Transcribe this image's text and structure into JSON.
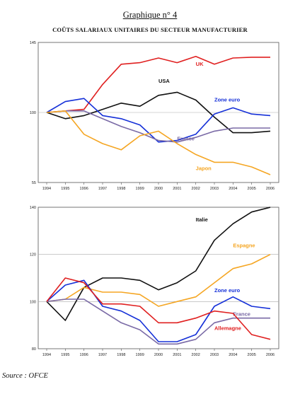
{
  "title": "Graphique n° 4",
  "subtitle": "COÛTS SALARIAUX UNITAIRES DU SECTEUR MANUFACTURIER",
  "source": "Source : OFCE",
  "chart_data": [
    {
      "type": "line",
      "x": [
        "1994",
        "1995",
        "1996",
        "1997",
        "1998",
        "1999",
        "2000",
        "2001",
        "2002",
        "2003",
        "2004",
        "2005",
        "2006"
      ],
      "ylim": [
        55,
        145
      ],
      "yticks": [
        "55",
        "100",
        "145"
      ],
      "series": [
        {
          "name": "UK",
          "color": "#e02020",
          "label_x": "2002",
          "label_y": 130,
          "values": [
            100,
            101,
            102,
            118,
            131,
            132,
            135,
            132,
            136,
            131,
            135,
            135.5,
            135.5
          ]
        },
        {
          "name": "USA",
          "color": "#111111",
          "label_x": "2000",
          "label_y": 119,
          "values": [
            100,
            96,
            98,
            102,
            106,
            104,
            111,
            113,
            108,
            97,
            87,
            87,
            88
          ]
        },
        {
          "name": "Zone euro",
          "color": "#1530d8",
          "label_x": "2003",
          "label_y": 107,
          "values": [
            100,
            107,
            109,
            98,
            96,
            92,
            81,
            82,
            86,
            99,
            103,
            99,
            98
          ]
        },
        {
          "name": "France",
          "color": "#7a6aa6",
          "label_x": "2001",
          "label_y": 82,
          "values": [
            100,
            101,
            101,
            96,
            91,
            87,
            82,
            81,
            84,
            88,
            90,
            90,
            90
          ]
        },
        {
          "name": "Japon",
          "color": "#f5a623",
          "label_x": "2002",
          "label_y": 63,
          "values": [
            100,
            101,
            86,
            80,
            76,
            85,
            88,
            80,
            73,
            68,
            68,
            65,
            60
          ]
        }
      ]
    },
    {
      "type": "line",
      "x": [
        "1994",
        "1995",
        "1996",
        "1997",
        "1998",
        "1999",
        "2000",
        "2001",
        "2002",
        "2003",
        "2004",
        "2005",
        "2006"
      ],
      "ylim": [
        80,
        140
      ],
      "yticks": [
        "80",
        "100",
        "120",
        "140"
      ],
      "series": [
        {
          "name": "Italie",
          "color": "#111111",
          "label_x": "2002",
          "label_y": 134,
          "values": [
            100,
            92,
            106,
            110,
            110,
            109,
            105,
            108,
            113,
            126,
            133,
            138,
            140
          ]
        },
        {
          "name": "Espagne",
          "color": "#f5a623",
          "label_x": "2004",
          "label_y": 123,
          "values": [
            100,
            101,
            106,
            104,
            104,
            103,
            98,
            100,
            102,
            108,
            114,
            116,
            120
          ]
        },
        {
          "name": "Zone euro",
          "color": "#1530d8",
          "label_x": "2003",
          "label_y": 104,
          "values": [
            100,
            107,
            109,
            98,
            96,
            92,
            83,
            83,
            86,
            98,
            102,
            98,
            97
          ]
        },
        {
          "name": "France",
          "color": "#7a6aa6",
          "label_x": "2004",
          "label_y": 94,
          "values": [
            100,
            101,
            101,
            96,
            91,
            88,
            82,
            82,
            84,
            91,
            93,
            93,
            93
          ]
        },
        {
          "name": "Allemagne",
          "color": "#e02020",
          "label_x": "2003",
          "label_y": 88,
          "values": [
            100,
            110,
            108,
            99,
            99,
            98,
            91,
            91,
            93,
            96,
            95,
            86,
            84
          ]
        }
      ]
    }
  ]
}
